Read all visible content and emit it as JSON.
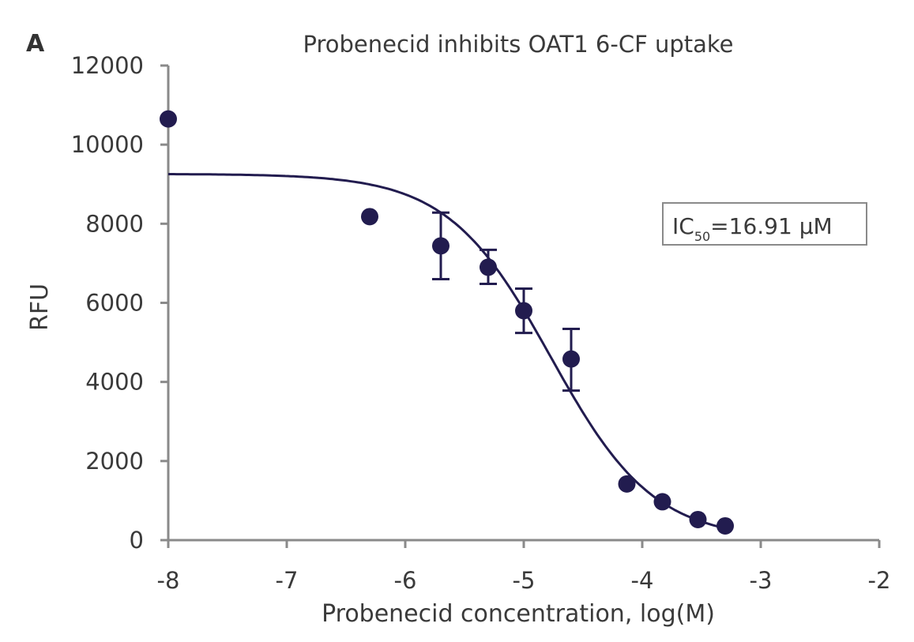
{
  "chart_data": {
    "type": "scatter",
    "panel_label": "A",
    "title": "Probenecid inhibits OAT1 6-CF uptake",
    "xlabel": "Probenecid concentration, log(M)",
    "ylabel": "RFU",
    "xlim": [
      -8,
      -2
    ],
    "ylim": [
      0,
      12000
    ],
    "xticks": [
      -8,
      -7,
      -6,
      -5,
      -4,
      -3,
      -2
    ],
    "yticks": [
      0,
      2000,
      4000,
      6000,
      8000,
      10000,
      12000
    ],
    "xtick_labels": [
      "-8",
      "-7",
      "-6",
      "-5",
      "-4",
      "-3",
      "-2"
    ],
    "ytick_labels": [
      "0",
      "2000",
      "4000",
      "6000",
      "8000",
      "10000",
      "12000"
    ],
    "grid": false,
    "annotation": {
      "prefix": "IC",
      "subscript": "50",
      "suffix": "=16.91 μM"
    },
    "series": [
      {
        "type": "scatter",
        "color": "#221c4f",
        "x": [
          -8.0,
          -6.3,
          -5.7,
          -5.3,
          -5.0,
          -4.6,
          -4.13,
          -3.83,
          -3.53,
          -3.3
        ],
        "y": [
          10650,
          8180,
          7440,
          6900,
          5800,
          4580,
          1420,
          970,
          520,
          360
        ],
        "err_low": [
          null,
          null,
          6600,
          6480,
          5240,
          3780,
          null,
          null,
          null,
          null
        ],
        "err_high": [
          null,
          null,
          8280,
          7340,
          6360,
          5340,
          null,
          null,
          null,
          null
        ]
      },
      {
        "type": "line",
        "color": "#221c4f",
        "fit": {
          "model": "4PL",
          "top": 9260,
          "bottom": 0,
          "logIC50": -4.772,
          "hill": 1.0
        },
        "x_range": [
          -8,
          -3.3
        ]
      }
    ]
  },
  "colors": {
    "axis": "#8a8a8a",
    "data": "#221c4f",
    "box_border": "#8a8a8a",
    "text": "#3a3a3a"
  }
}
